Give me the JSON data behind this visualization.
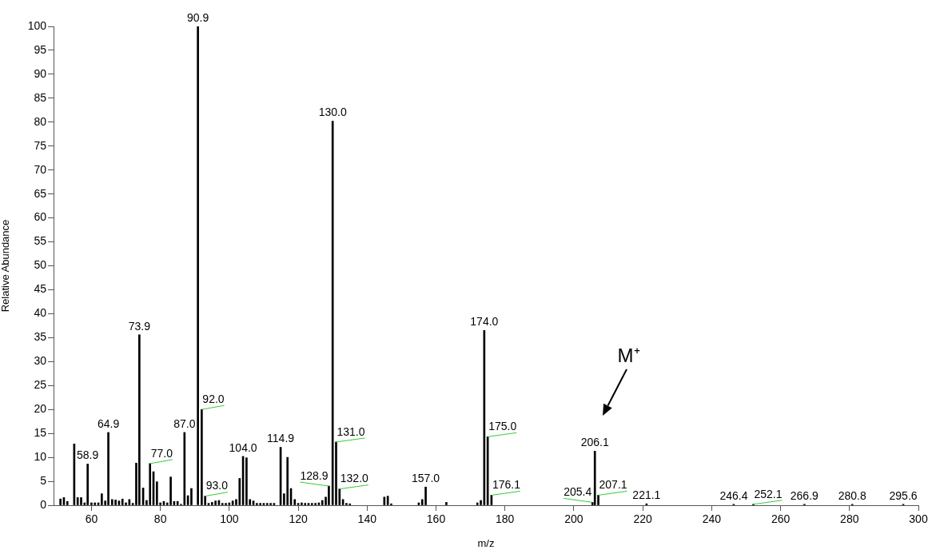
{
  "chart_data": {
    "type": "bar",
    "xlabel": "m/z",
    "ylabel": "Relative Abundance",
    "color": "#000000",
    "x": [
      51,
      52,
      53,
      55,
      56,
      57,
      58,
      58.9,
      60,
      61,
      62,
      63,
      64,
      64.9,
      66,
      67,
      68,
      69,
      70,
      71,
      72,
      73,
      73.9,
      75,
      76,
      77.0,
      78,
      79,
      80,
      81,
      82,
      83,
      84,
      85,
      86,
      87.0,
      88,
      89,
      90.9,
      92.0,
      93.0,
      94,
      95,
      96,
      97,
      98,
      99,
      100,
      101,
      102,
      103,
      104.0,
      105,
      106,
      107,
      108,
      109,
      110,
      111,
      112,
      113,
      114.9,
      115.9,
      116.9,
      117.9,
      119,
      120,
      121,
      122,
      123,
      124,
      125,
      126,
      127,
      128,
      128.9,
      130.0,
      131.0,
      132.0,
      133,
      134,
      135,
      145,
      146,
      147,
      155,
      156,
      157.0,
      163,
      172,
      173,
      174.0,
      175.0,
      176.1,
      205.4,
      206.1,
      207.1,
      221.1,
      246.4,
      252.1,
      266.9,
      280.8,
      295.6
    ],
    "values": [
      1.3,
      1.6,
      0.8,
      12.8,
      1.6,
      1.6,
      0.5,
      8.6,
      0.5,
      0.5,
      0.5,
      2.4,
      0.9,
      15.2,
      1.2,
      1.1,
      0.9,
      1.3,
      0.5,
      1.2,
      0.4,
      8.8,
      35.6,
      3.6,
      1.0,
      8.7,
      7.0,
      4.9,
      0.5,
      0.8,
      0.5,
      5.9,
      0.8,
      0.8,
      0.2,
      15.2,
      2.0,
      3.5,
      100,
      20.0,
      1.9,
      0.4,
      0.6,
      0.9,
      1.0,
      0.4,
      0.4,
      0.5,
      0.9,
      1.2,
      5.6,
      10.2,
      9.9,
      1.2,
      0.9,
      0.4,
      0.4,
      0.4,
      0.4,
      0.4,
      0.4,
      12.1,
      2.4,
      10.0,
      3.5,
      1.2,
      0.4,
      0.5,
      0.4,
      0.4,
      0.4,
      0.4,
      0.5,
      1.0,
      1.7,
      4.0,
      80.2,
      13.2,
      3.4,
      1.2,
      0.4,
      0.3,
      1.7,
      1.9,
      0.3,
      0.5,
      1.2,
      3.8,
      0.6,
      0.5,
      1.0,
      36.5,
      14.3,
      2.1,
      0.6,
      11.3,
      2.1,
      0.3,
      0.2,
      0.2,
      0.2,
      0.2,
      0.2
    ],
    "xlim": [
      49,
      300
    ],
    "xticks": [
      60,
      80,
      100,
      120,
      140,
      160,
      180,
      200,
      220,
      240,
      260,
      280,
      300
    ],
    "ylim": [
      0,
      100
    ],
    "yticks": [
      0,
      5,
      10,
      15,
      20,
      25,
      30,
      35,
      40,
      45,
      50,
      55,
      60,
      65,
      70,
      75,
      80,
      85,
      90,
      95,
      100
    ],
    "annotations": [
      "M⁺",
      {
        "text": "58.9",
        "x": 58.9,
        "y": 8.6
      },
      {
        "text": "64.9",
        "x": 64.9,
        "y": 15.2
      },
      {
        "text": "73.9",
        "x": 73.9,
        "y": 35.6
      },
      {
        "text": "77.0",
        "x": 77.0,
        "y": 8.7
      },
      {
        "text": "87.0",
        "x": 87.0,
        "y": 15.2
      },
      {
        "text": "90.9",
        "x": 90.9,
        "y": 100
      },
      {
        "text": "92.0",
        "x": 92.0,
        "y": 20.0
      },
      {
        "text": "93.0",
        "x": 93.0,
        "y": 1.9
      },
      {
        "text": "104.0",
        "x": 104.0,
        "y": 10.2
      },
      {
        "text": "114.9",
        "x": 114.9,
        "y": 12.1
      },
      {
        "text": "128.9",
        "x": 128.9,
        "y": 4.0
      },
      {
        "text": "130.0",
        "x": 130.0,
        "y": 80.2
      },
      {
        "text": "131.0",
        "x": 131.0,
        "y": 13.2
      },
      {
        "text": "132.0",
        "x": 132.0,
        "y": 3.4
      },
      {
        "text": "157.0",
        "x": 157.0,
        "y": 3.8
      },
      {
        "text": "174.0",
        "x": 174.0,
        "y": 36.5
      },
      {
        "text": "175.0",
        "x": 175.0,
        "y": 14.3
      },
      {
        "text": "176.1",
        "x": 176.1,
        "y": 2.1
      },
      {
        "text": "205.4",
        "x": 205.4,
        "y": 0.6
      },
      {
        "text": "206.1",
        "x": 206.1,
        "y": 11.3
      },
      {
        "text": "207.1",
        "x": 207.1,
        "y": 2.1
      },
      {
        "text": "221.1",
        "x": 221.1,
        "y": 0.3
      },
      {
        "text": "246.4",
        "x": 246.4,
        "y": 0.2
      },
      {
        "text": "252.1",
        "x": 252.1,
        "y": 0.2
      },
      {
        "text": "266.9",
        "x": 266.9,
        "y": 0.2
      },
      {
        "text": "280.8",
        "x": 280.8,
        "y": 0.2
      },
      {
        "text": "295.6",
        "x": 295.6,
        "y": 0.2
      }
    ]
  }
}
